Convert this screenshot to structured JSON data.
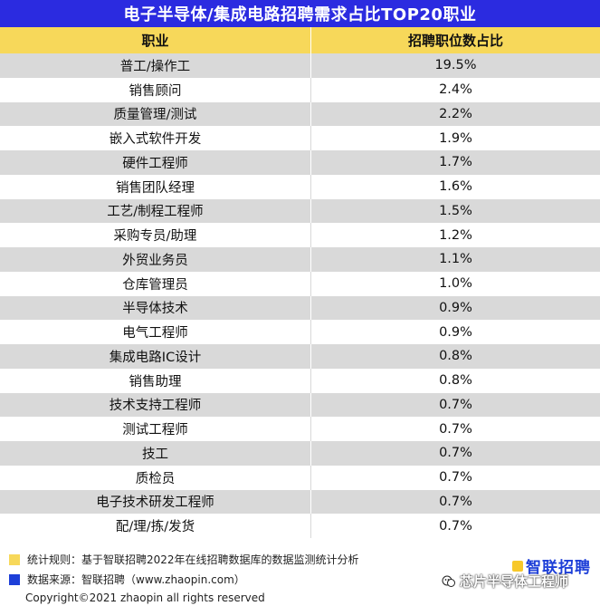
{
  "title": "电子半导体/集成电路招聘需求占比TOP20职业",
  "chart_data": {
    "type": "table",
    "columns": [
      "职业",
      "招聘职位数占比"
    ],
    "rows": [
      {
        "job": "普工/操作工",
        "share": "19.5%"
      },
      {
        "job": "销售顾问",
        "share": "2.4%"
      },
      {
        "job": "质量管理/测试",
        "share": "2.2%"
      },
      {
        "job": "嵌入式软件开发",
        "share": "1.9%"
      },
      {
        "job": "硬件工程师",
        "share": "1.7%"
      },
      {
        "job": "销售团队经理",
        "share": "1.6%"
      },
      {
        "job": "工艺/制程工程师",
        "share": "1.5%"
      },
      {
        "job": "采购专员/助理",
        "share": "1.2%"
      },
      {
        "job": "外贸业务员",
        "share": "1.1%"
      },
      {
        "job": "仓库管理员",
        "share": "1.0%"
      },
      {
        "job": "半导体技术",
        "share": "0.9%"
      },
      {
        "job": "电气工程师",
        "share": "0.9%"
      },
      {
        "job": "集成电路IC设计",
        "share": "0.8%"
      },
      {
        "job": "销售助理",
        "share": "0.8%"
      },
      {
        "job": "技术支持工程师",
        "share": "0.7%"
      },
      {
        "job": "测试工程师",
        "share": "0.7%"
      },
      {
        "job": "技工",
        "share": "0.7%"
      },
      {
        "job": "质检员",
        "share": "0.7%"
      },
      {
        "job": "电子技术研发工程师",
        "share": "0.7%"
      },
      {
        "job": "配/理/拣/发货",
        "share": "0.7%"
      }
    ]
  },
  "footer": {
    "note_rule": "统计规则：基于智联招聘2022年在线招聘数据库的数据监测统计分析",
    "note_source": "数据来源：智联招聘（www.zhaopin.com）",
    "copyright": "Copyright©2021 zhaopin all rights reserved",
    "logo_text": "智联招聘",
    "watermark_text": "芯片半导体工程师"
  },
  "colors": {
    "title_bg": "#2b2be0",
    "header_bg": "#f7d85a",
    "stripe_bg": "#d9d9d9",
    "rule_square": "#f7d85a",
    "source_square": "#1d3fd8"
  }
}
